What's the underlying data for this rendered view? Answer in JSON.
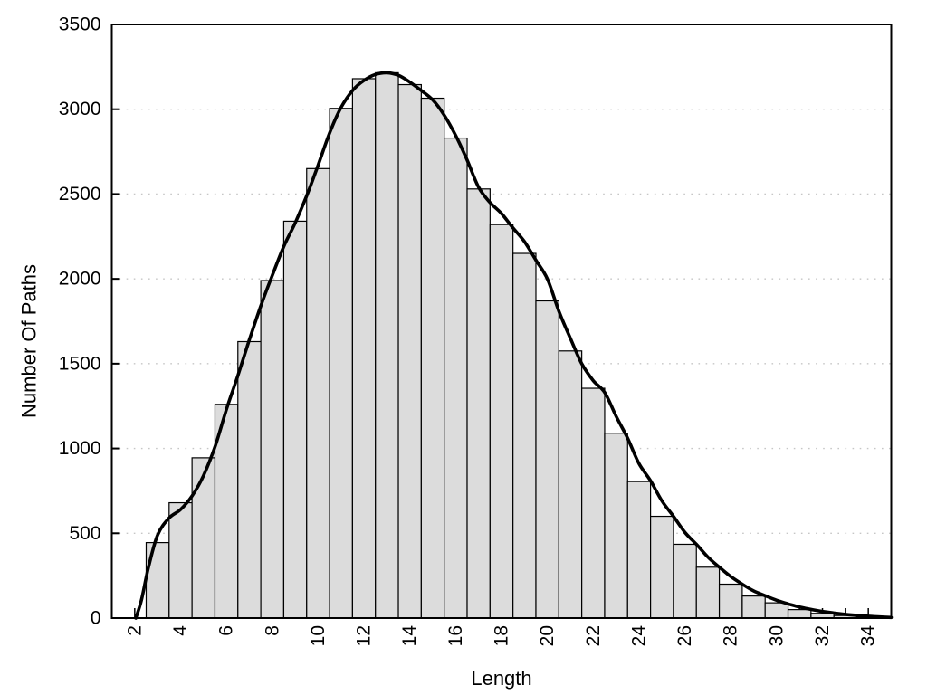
{
  "figure": {
    "background": "#ffffff",
    "description": "Histogram of path lengths with smoothed frequency curve overlay"
  },
  "chart_data": {
    "type": "bar",
    "title": "",
    "xlabel": "Length",
    "ylabel": "Number Of Paths",
    "xlim": [
      1,
      35
    ],
    "ylim": [
      0,
      3500
    ],
    "grid": "horizontal dotted gridlines at labeled y ticks",
    "legend_position": "none",
    "bin_width": 1,
    "x_ticks_labeled": [
      2,
      4,
      6,
      8,
      10,
      12,
      14,
      16,
      18,
      20,
      22,
      24,
      26,
      28,
      30,
      32,
      34
    ],
    "x_ticks_minor": [
      2,
      3,
      4,
      5,
      6,
      7,
      8,
      9,
      10,
      11,
      12,
      13,
      14,
      15,
      16,
      17,
      18,
      19,
      20,
      21,
      22,
      23,
      24,
      25,
      26,
      27,
      28,
      29,
      30,
      31,
      32,
      33,
      34,
      35
    ],
    "x_tick_label_rotation_deg": -90,
    "y_ticks": [
      0,
      500,
      1000,
      1500,
      2000,
      2500,
      3000,
      3500
    ],
    "gridlines_y": [
      500,
      1000,
      1500,
      2000,
      2500,
      3000
    ],
    "categories": [
      3,
      4,
      5,
      6,
      7,
      8,
      9,
      10,
      11,
      12,
      13,
      14,
      15,
      16,
      17,
      18,
      19,
      20,
      21,
      22,
      23,
      24,
      25,
      26,
      27,
      28,
      29,
      30,
      31,
      32,
      33,
      34
    ],
    "values": [
      445,
      680,
      945,
      1260,
      1630,
      1990,
      2340,
      2650,
      3005,
      3180,
      3215,
      3145,
      3065,
      2830,
      2530,
      2320,
      2150,
      1870,
      1575,
      1355,
      1090,
      805,
      600,
      435,
      300,
      200,
      130,
      90,
      50,
      28,
      15,
      8
    ],
    "series": [
      {
        "name": "histogram",
        "style": "bars",
        "bin_centers": "categories",
        "values_ref": "values"
      },
      {
        "name": "smoothed-curve",
        "style": "thick black line",
        "points": "curve"
      }
    ],
    "curve": [
      [
        2.05,
        0
      ],
      [
        2.3,
        110
      ],
      [
        2.6,
        300
      ],
      [
        3.0,
        490
      ],
      [
        3.5,
        590
      ],
      [
        4.0,
        640
      ],
      [
        4.5,
        720
      ],
      [
        5.0,
        840
      ],
      [
        5.5,
        1010
      ],
      [
        6.0,
        1230
      ],
      [
        6.5,
        1430
      ],
      [
        7.0,
        1640
      ],
      [
        7.5,
        1840
      ],
      [
        8.0,
        2020
      ],
      [
        8.5,
        2190
      ],
      [
        9.0,
        2330
      ],
      [
        9.5,
        2490
      ],
      [
        10.0,
        2670
      ],
      [
        10.5,
        2860
      ],
      [
        11.0,
        3010
      ],
      [
        11.5,
        3110
      ],
      [
        12.0,
        3170
      ],
      [
        12.5,
        3205
      ],
      [
        13.0,
        3215
      ],
      [
        13.5,
        3200
      ],
      [
        14.0,
        3160
      ],
      [
        14.5,
        3110
      ],
      [
        15.0,
        3055
      ],
      [
        15.5,
        2965
      ],
      [
        16.0,
        2845
      ],
      [
        16.5,
        2700
      ],
      [
        17.0,
        2540
      ],
      [
        17.5,
        2450
      ],
      [
        18.0,
        2385
      ],
      [
        18.5,
        2300
      ],
      [
        19.0,
        2220
      ],
      [
        19.5,
        2110
      ],
      [
        20.0,
        2000
      ],
      [
        20.5,
        1810
      ],
      [
        21.0,
        1650
      ],
      [
        21.5,
        1500
      ],
      [
        22.0,
        1400
      ],
      [
        22.5,
        1330
      ],
      [
        23.0,
        1190
      ],
      [
        23.5,
        1060
      ],
      [
        24.0,
        910
      ],
      [
        24.5,
        810
      ],
      [
        25.0,
        690
      ],
      [
        25.5,
        600
      ],
      [
        26.0,
        505
      ],
      [
        26.5,
        435
      ],
      [
        27.0,
        360
      ],
      [
        27.5,
        300
      ],
      [
        28.0,
        245
      ],
      [
        28.5,
        200
      ],
      [
        29.0,
        160
      ],
      [
        29.5,
        132
      ],
      [
        30.0,
        105
      ],
      [
        30.5,
        84
      ],
      [
        31.0,
        65
      ],
      [
        31.5,
        51
      ],
      [
        32.0,
        39
      ],
      [
        32.5,
        30
      ],
      [
        33.0,
        22
      ],
      [
        33.5,
        16
      ],
      [
        34.0,
        11
      ],
      [
        34.5,
        7
      ],
      [
        35.0,
        4
      ]
    ],
    "colors": {
      "bar_fill": "#dcdcdc",
      "bar_border": "#000000",
      "curve": "#000000",
      "grid": "#c6c6c6",
      "frame": "#000000",
      "text": "#000000",
      "background": "#ffffff"
    }
  }
}
